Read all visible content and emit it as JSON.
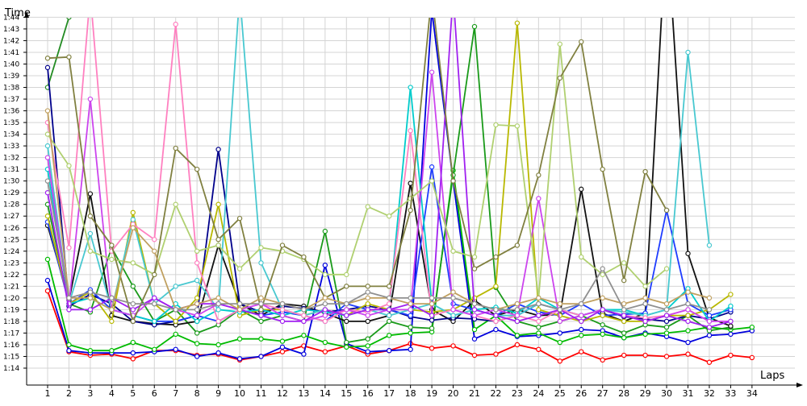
{
  "chart_data": {
    "type": "line",
    "title": "",
    "ylabel": "Time",
    "xlabel": "Laps",
    "ylim": [
      73.0,
      105.5
    ],
    "grid": true,
    "x": [
      1,
      2,
      3,
      4,
      5,
      6,
      7,
      8,
      9,
      10,
      11,
      12,
      13,
      14,
      15,
      16,
      17,
      18,
      19,
      20,
      21,
      22,
      23,
      24,
      25,
      26,
      27,
      28,
      29,
      30,
      31,
      32,
      33,
      34
    ],
    "yticks": [
      {
        "v": 74,
        "label": "1:14"
      },
      {
        "v": 75,
        "label": "1:15"
      },
      {
        "v": 76,
        "label": "1:16"
      },
      {
        "v": 77,
        "label": "1:17"
      },
      {
        "v": 78,
        "label": "1:18"
      },
      {
        "v": 79,
        "label": "1:19"
      },
      {
        "v": 80,
        "label": "1:20"
      },
      {
        "v": 81,
        "label": "1:21"
      },
      {
        "v": 82,
        "label": "1:22"
      },
      {
        "v": 83,
        "label": "1:23"
      },
      {
        "v": 84,
        "label": "1:24"
      },
      {
        "v": 85,
        "label": "1:25"
      },
      {
        "v": 86,
        "label": "1:26"
      },
      {
        "v": 87,
        "label": "1:27"
      },
      {
        "v": 88,
        "label": "1:28"
      },
      {
        "v": 89,
        "label": "1:29"
      },
      {
        "v": 90,
        "label": "1:30"
      },
      {
        "v": 91,
        "label": "1:31"
      },
      {
        "v": 92,
        "label": "1:32"
      },
      {
        "v": 93,
        "label": "1:33"
      },
      {
        "v": 94,
        "label": "1:34"
      },
      {
        "v": 95,
        "label": "1:35"
      },
      {
        "v": 96,
        "label": "1:36"
      },
      {
        "v": 97,
        "label": "1:37"
      },
      {
        "v": 98,
        "label": "1:38"
      },
      {
        "v": 99,
        "label": "1:39"
      },
      {
        "v": 100,
        "label": "1:40"
      },
      {
        "v": 101,
        "label": "1:41"
      },
      {
        "v": 102,
        "label": "1:42"
      },
      {
        "v": 103,
        "label": "1:43"
      },
      {
        "v": 104,
        "label": "1:44"
      }
    ],
    "series": [
      {
        "color": "#ff0000",
        "values": [
          80.6,
          75.4,
          75.1,
          75.2,
          74.8,
          75.5,
          75.5,
          75.1,
          75.2,
          74.7,
          75.0,
          75.4,
          75.9,
          75.4,
          75.9,
          75.2,
          75.5,
          76.1,
          75.7,
          75.9,
          75.1,
          75.2,
          76.0,
          75.6,
          74.6,
          75.4,
          74.7,
          75.1,
          75.1,
          75.0,
          75.2,
          74.5,
          75.1,
          74.9
        ]
      },
      {
        "color": "#0000dd",
        "values": [
          81.5,
          75.5,
          75.3,
          75.3,
          75.3,
          75.4,
          75.6,
          75.0,
          75.3,
          74.8,
          75.0,
          75.8,
          75.2,
          82.8,
          76.1,
          75.4,
          75.5,
          75.6,
          104.6,
          90.0,
          76.5,
          77.3,
          76.7,
          76.8,
          77.0,
          77.3,
          77.2,
          76.6,
          77.0,
          76.7,
          76.2,
          76.8,
          76.9,
          77.2
        ]
      },
      {
        "color": "#00bb00",
        "values": [
          83.3,
          76.0,
          75.5,
          75.5,
          76.2,
          75.6,
          76.9,
          76.1,
          76.0,
          76.5,
          76.5,
          76.3,
          76.8,
          76.2,
          75.8,
          75.9,
          76.8,
          77.0,
          77.1,
          90.9,
          77.3,
          78.5,
          76.8,
          77.0,
          76.2,
          76.8,
          76.9,
          76.6,
          76.9,
          77.0,
          77.2,
          77.5,
          77.3,
          77.5
        ]
      },
      {
        "color": "#228b22",
        "values": [
          98.0,
          104.0,
          null,
          null,
          null,
          null,
          null,
          null,
          null,
          null,
          null,
          null,
          null,
          null,
          null,
          null,
          null,
          null,
          null,
          null,
          null,
          null,
          null,
          null,
          null,
          null,
          null,
          null,
          null,
          null,
          null,
          null,
          null,
          null
        ]
      },
      {
        "color": "#1a9a1a",
        "values": [
          88.0,
          79.5,
          78.8,
          84.3,
          81.0,
          78.0,
          79.0,
          77.0,
          77.7,
          79.0,
          78.0,
          78.5,
          78.0,
          85.7,
          76.2,
          76.5,
          78.0,
          77.5,
          77.4,
          90.5,
          103.2,
          80.9,
          78.0,
          77.5,
          78.0,
          78.5,
          77.7,
          77.0,
          77.7,
          77.5,
          78.5,
          77.2,
          77.5,
          null
        ]
      },
      {
        "color": "#111111",
        "values": [
          86.2,
          79.8,
          88.9,
          78.5,
          78.0,
          77.8,
          77.7,
          78.0,
          84.5,
          79.5,
          78.5,
          79.5,
          79.3,
          78.7,
          78.0,
          78.0,
          78.5,
          89.8,
          79.0,
          78.0,
          79.8,
          78.5,
          79.0,
          78.5,
          78.6,
          89.3,
          78.7,
          78.0,
          78.7,
          112.0,
          83.8,
          78.3,
          77.6,
          null
        ]
      },
      {
        "color": "#00008b",
        "values": [
          99.7,
          79.3,
          80.3,
          79.5,
          78.0,
          77.7,
          78.0,
          78.5,
          92.7,
          79.5,
          78.8,
          79.3,
          79.1,
          78.8,
          79.0,
          79.3,
          79.0,
          78.4,
          78.1,
          78.3,
          78.2,
          78.0,
          78.5,
          79.5,
          79.0,
          78.5,
          79.0,
          78.4,
          78.2,
          78.0,
          78.5,
          78.2,
          78.8,
          null
        ]
      },
      {
        "color": "#1e3cff",
        "values": [
          86.5,
          79.5,
          80.7,
          79.0,
          78.5,
          78.0,
          78.0,
          78.5,
          78.0,
          79.0,
          78.5,
          78.8,
          78.5,
          78.0,
          79.5,
          79.0,
          79.0,
          78.5,
          91.2,
          79.5,
          79.0,
          78.5,
          79.5,
          78.8,
          78.5,
          79.5,
          78.5,
          78.6,
          78.7,
          87.5,
          79.5,
          78.5,
          79.0,
          null
        ]
      },
      {
        "color": "#b8b800",
        "values": [
          87.0,
          79.5,
          80.5,
          78.0,
          87.3,
          79.5,
          78.0,
          80.0,
          88.0,
          78.5,
          79.0,
          79.0,
          78.5,
          79.0,
          78.5,
          79.5,
          79.0,
          79.0,
          78.8,
          79.0,
          80.0,
          81.0,
          103.5,
          79.0,
          78.5,
          78.0,
          78.5,
          78.0,
          78.0,
          78.5,
          78.5,
          79.0,
          80.3,
          null
        ]
      },
      {
        "color": "#00cccc",
        "values": [
          91.0,
          79.5,
          80.0,
          79.0,
          78.5,
          78.0,
          79.5,
          78.0,
          79.0,
          78.8,
          79.0,
          78.5,
          79.0,
          78.8,
          78.5,
          79.0,
          79.0,
          98.0,
          79.5,
          78.5,
          79.0,
          79.2,
          78.7,
          80.0,
          79.0,
          78.5,
          79.0,
          79.0,
          78.5,
          79.0,
          80.8,
          78.0,
          79.3,
          null
        ]
      },
      {
        "color": "#48c8d0",
        "values": [
          93.0,
          79.5,
          85.5,
          79.0,
          86.7,
          79.5,
          81.0,
          81.5,
          79.0,
          106.0,
          83.0,
          79.0,
          78.5,
          79.0,
          78.5,
          79.0,
          78.5,
          79.0,
          79.5,
          78.5,
          79.0,
          78.5,
          78.5,
          79.5,
          79.0,
          78.5,
          79.0,
          78.8,
          78.5,
          79.0,
          101.0,
          84.5,
          null,
          null
        ]
      },
      {
        "color": "#ff80c0",
        "values": [
          95.0,
          84.3,
          106.0,
          84.0,
          86.3,
          85.0,
          103.4,
          83.0,
          78.0,
          79.0,
          79.5,
          79.0,
          78.5,
          78.0,
          79.0,
          78.8,
          79.5,
          94.3,
          78.5,
          79.0,
          78.5,
          78.0,
          78.5,
          78.0,
          79.0,
          78.5,
          79.0,
          78.5,
          78.3,
          78.5,
          79.0,
          78.0,
          78.0,
          null
        ]
      },
      {
        "color": "#cc44ee",
        "values": [
          92.0,
          79.5,
          97.0,
          79.0,
          78.5,
          80.0,
          79.0,
          78.5,
          79.5,
          79.0,
          79.5,
          78.5,
          78.0,
          78.5,
          79.0,
          78.5,
          79.0,
          79.0,
          99.3,
          79.0,
          78.5,
          79.0,
          78.5,
          88.5,
          78.0,
          78.5,
          79.0,
          78.5,
          78.0,
          78.5,
          79.0,
          78.0,
          78.0,
          null
        ]
      },
      {
        "color": "#a020f0",
        "values": [
          89.0,
          79.0,
          79.0,
          80.0,
          79.0,
          80.0,
          79.0,
          79.5,
          79.5,
          79.0,
          78.5,
          78.0,
          78.0,
          79.0,
          78.5,
          79.0,
          79.0,
          79.5,
          78.5,
          106.0,
          79.0,
          78.5,
          78.0,
          78.5,
          79.0,
          78.0,
          79.0,
          78.5,
          78.0,
          78.5,
          78.0,
          77.5,
          78.0,
          null
        ]
      },
      {
        "color": "#b0d070",
        "values": [
          94.0,
          91.3,
          84.0,
          83.3,
          83.0,
          82.0,
          88.0,
          84.0,
          84.5,
          82.5,
          84.3,
          84.0,
          83.3,
          82.0,
          82.0,
          87.8,
          87.0,
          88.5,
          90.0,
          84.0,
          83.5,
          94.8,
          94.7,
          80.0,
          101.7,
          83.5,
          82.0,
          83.0,
          81.0,
          82.5,
          null,
          null,
          null,
          null
        ]
      },
      {
        "color": "#808040",
        "values": [
          100.5,
          100.6,
          87.0,
          84.5,
          78.0,
          82.0,
          92.8,
          91.0,
          85.0,
          86.8,
          79.0,
          84.5,
          83.5,
          80.0,
          81.0,
          81.0,
          81.0,
          87.5,
          106.0,
          90.0,
          82.5,
          83.5,
          84.5,
          90.5,
          98.8,
          101.9,
          91.0,
          81.5,
          90.8,
          87.5,
          null,
          null,
          null,
          null
        ]
      },
      {
        "color": "#c0a060",
        "values": [
          96.0,
          80.0,
          80.0,
          79.0,
          86.0,
          84.0,
          79.0,
          79.5,
          80.0,
          79.0,
          80.0,
          79.5,
          79.0,
          80.0,
          79.5,
          80.0,
          80.0,
          79.5,
          79.5,
          80.5,
          79.5,
          79.0,
          79.5,
          80.0,
          79.5,
          79.5,
          80.0,
          79.5,
          80.0,
          79.5,
          80.5,
          80.0,
          null,
          null
        ]
      },
      {
        "color": "#909090",
        "values": [
          90.0,
          80.0,
          80.5,
          80.0,
          79.5,
          79.5,
          79.0,
          79.0,
          79.5,
          79.5,
          79.5,
          79.5,
          79.0,
          79.5,
          79.5,
          80.5,
          80.0,
          80.0,
          80.0,
          80.0,
          79.5,
          79.0,
          79.0,
          79.5,
          79.0,
          79.5,
          82.5,
          79.0,
          79.5,
          79.0,
          79.5,
          79.0,
          null,
          null
        ]
      }
    ]
  }
}
